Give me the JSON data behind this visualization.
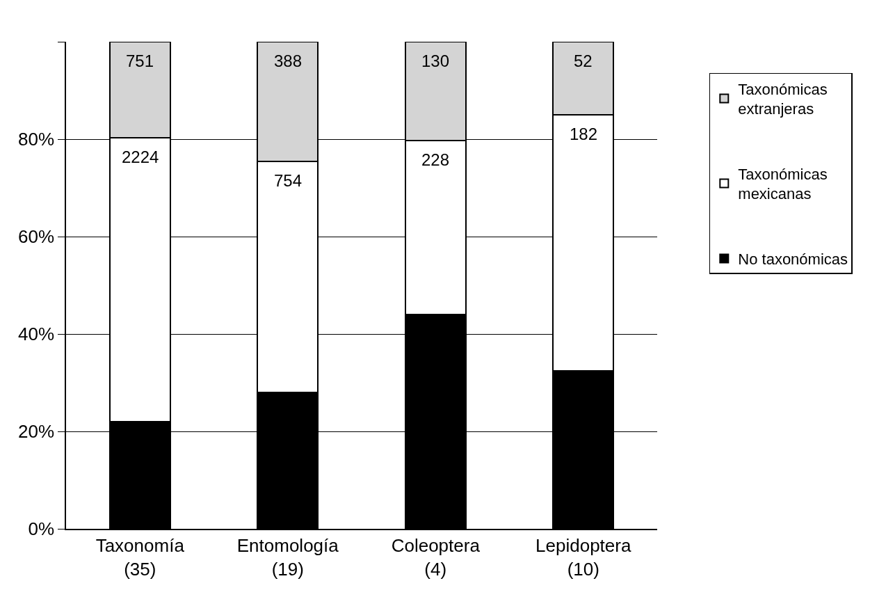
{
  "chart_data": {
    "type": "bar",
    "stacked": true,
    "categories": [
      "Taxonomía\n(35)",
      "Entomología\n(19)",
      "Coleoptera\n(4)",
      "Lepidoptera\n(10)"
    ],
    "series": [
      {
        "name": "No taxonómicas",
        "color": "#000000",
        "values": [
          22,
          28,
          44,
          32.5
        ]
      },
      {
        "name": "Taxonómicas mexicanas",
        "color": "#ffffff",
        "values": [
          58.3,
          47.5,
          35.7,
          52.5
        ]
      },
      {
        "name": "Taxonómicas extranjeras",
        "color": "#d4d4d4",
        "values": [
          19.7,
          24.5,
          20.3,
          15.0
        ]
      }
    ],
    "annotations": [
      {
        "text": "751",
        "x": "Taxonomía\n(35)",
        "y": 100
      },
      {
        "text": "2224",
        "x": "Taxonomía\n(35)",
        "y": 80.3
      },
      {
        "text": "388",
        "x": "Entomología\n(19)",
        "y": 100
      },
      {
        "text": "754",
        "x": "Entomología\n(19)",
        "y": 75.5
      },
      {
        "text": "130",
        "x": "Coleoptera\n(4)",
        "y": 100
      },
      {
        "text": "228",
        "x": "Coleoptera\n(4)",
        "y": 79.7
      },
      {
        "text": "52",
        "x": "Lepidoptera\n(10)",
        "y": 100
      },
      {
        "text": "182",
        "x": "Lepidoptera\n(10)",
        "y": 85
      }
    ],
    "ylim": [
      0,
      100
    ],
    "yticks": [
      {
        "value": 0,
        "label": "0%"
      },
      {
        "value": 20,
        "label": "20%"
      },
      {
        "value": 40,
        "label": "40%"
      },
      {
        "value": 60,
        "label": "60%"
      },
      {
        "value": 80,
        "label": "80%"
      },
      {
        "value": 100,
        "label": null
      }
    ],
    "grid": "y",
    "legend": "right"
  }
}
